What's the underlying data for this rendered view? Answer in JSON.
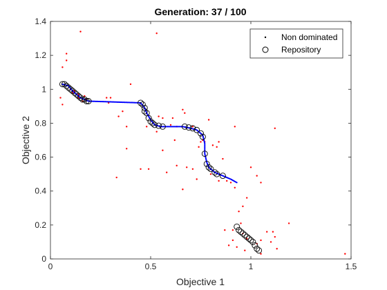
{
  "chart_data": {
    "type": "scatter",
    "title": "Generation: 37 / 100",
    "xlabel": "Objective 1",
    "ylabel": "Objective 2",
    "xlim": [
      0,
      1.5
    ],
    "ylim": [
      0,
      1.4
    ],
    "xticks": [
      "0",
      "0.5",
      "1",
      "1.5"
    ],
    "yticks": [
      "0",
      "0.2",
      "0.4",
      "0.6",
      "0.8",
      "1",
      "1.2",
      "1.4"
    ],
    "grid": false,
    "legend_position": "top-right",
    "legend": [
      {
        "label": "Non dominated",
        "marker": "dot",
        "color": "#000000"
      },
      {
        "label": "Repository",
        "marker": "circle",
        "color": "#000000"
      }
    ],
    "colors": {
      "population": "#ff0000",
      "front_line": "#0000ff",
      "repository": "#000000"
    },
    "population_points": [
      [
        0.15,
        1.34
      ],
      [
        0.53,
        1.33
      ],
      [
        0.06,
        1.13
      ],
      [
        0.08,
        1.17
      ],
      [
        0.08,
        1.21
      ],
      [
        0.4,
        1.03
      ],
      [
        0.05,
        0.95
      ],
      [
        0.06,
        0.91
      ],
      [
        0.28,
        0.95
      ],
      [
        0.3,
        0.95
      ],
      [
        0.29,
        0.92
      ],
      [
        0.34,
        0.84
      ],
      [
        0.36,
        0.87
      ],
      [
        0.38,
        0.65
      ],
      [
        0.38,
        0.78
      ],
      [
        0.33,
        0.48
      ],
      [
        0.45,
        0.53
      ],
      [
        0.49,
        0.53
      ],
      [
        0.48,
        0.78
      ],
      [
        0.53,
        0.75
      ],
      [
        0.56,
        0.64
      ],
      [
        0.58,
        0.51
      ],
      [
        0.62,
        0.7
      ],
      [
        0.63,
        0.55
      ],
      [
        0.61,
        0.83
      ],
      [
        0.54,
        0.84
      ],
      [
        0.56,
        0.83
      ],
      [
        0.66,
        0.88
      ],
      [
        0.67,
        0.86
      ],
      [
        0.66,
        0.41
      ],
      [
        0.68,
        0.54
      ],
      [
        0.71,
        0.53
      ],
      [
        0.73,
        0.47
      ],
      [
        0.74,
        0.66
      ],
      [
        0.75,
        0.69
      ],
      [
        0.77,
        0.69
      ],
      [
        0.79,
        0.82
      ],
      [
        0.83,
        0.66
      ],
      [
        0.84,
        0.46
      ],
      [
        0.86,
        0.59
      ],
      [
        0.84,
        0.69
      ],
      [
        0.81,
        0.67
      ],
      [
        0.8,
        0.5
      ],
      [
        0.92,
        0.78
      ],
      [
        0.94,
        0.28
      ],
      [
        0.96,
        0.31
      ],
      [
        1.0,
        0.54
      ],
      [
        1.05,
        0.45
      ],
      [
        1.12,
        0.77
      ],
      [
        1.03,
        0.49
      ],
      [
        0.87,
        0.17
      ],
      [
        0.91,
        0.11
      ],
      [
        0.93,
        0.07
      ],
      [
        0.96,
        0.15
      ],
      [
        0.98,
        0.12
      ],
      [
        0.97,
        0.05
      ],
      [
        0.89,
        0.08
      ],
      [
        0.91,
        0.17
      ],
      [
        1.03,
        0.09
      ],
      [
        1.05,
        0.03
      ],
      [
        1.05,
        0.11
      ],
      [
        1.08,
        0.16
      ],
      [
        1.1,
        0.1
      ],
      [
        1.12,
        0.13
      ],
      [
        1.13,
        0.06
      ],
      [
        1.19,
        0.21
      ],
      [
        1.11,
        0.16
      ],
      [
        1.47,
        0.03
      ],
      [
        0.98,
        0.36
      ],
      [
        0.95,
        0.21
      ],
      [
        0.17,
        0.96
      ],
      [
        0.18,
        0.94
      ],
      [
        0.14,
        0.97
      ],
      [
        0.12,
        0.99
      ],
      [
        0.16,
        0.93
      ],
      [
        0.1,
        1.0
      ],
      [
        0.11,
        0.98
      ],
      [
        0.14,
        0.95
      ],
      [
        0.6,
        0.79
      ],
      [
        0.63,
        0.78
      ],
      [
        0.71,
        0.78
      ],
      [
        0.88,
        0.46
      ],
      [
        0.9,
        0.45
      ],
      [
        0.92,
        0.42
      ],
      [
        0.76,
        0.7
      ]
    ],
    "front_line": [
      [
        0.06,
        1.03
      ],
      [
        0.09,
        1.02
      ],
      [
        0.11,
        0.99
      ],
      [
        0.13,
        0.97
      ],
      [
        0.15,
        0.95
      ],
      [
        0.17,
        0.94
      ],
      [
        0.19,
        0.93
      ],
      [
        0.45,
        0.92
      ],
      [
        0.47,
        0.89
      ],
      [
        0.48,
        0.86
      ],
      [
        0.5,
        0.82
      ],
      [
        0.52,
        0.79
      ],
      [
        0.55,
        0.78
      ],
      [
        0.58,
        0.78
      ],
      [
        0.62,
        0.78
      ],
      [
        0.66,
        0.78
      ],
      [
        0.7,
        0.77
      ],
      [
        0.73,
        0.76
      ],
      [
        0.76,
        0.73
      ],
      [
        0.77,
        0.68
      ],
      [
        0.77,
        0.62
      ],
      [
        0.78,
        0.57
      ],
      [
        0.79,
        0.54
      ],
      [
        0.82,
        0.51
      ],
      [
        0.86,
        0.49
      ],
      [
        0.9,
        0.47
      ],
      [
        0.93,
        0.45
      ]
    ],
    "repository": [
      [
        0.06,
        1.03
      ],
      [
        0.07,
        1.03
      ],
      [
        0.08,
        1.02
      ],
      [
        0.09,
        1.01
      ],
      [
        0.1,
        1.0
      ],
      [
        0.11,
        0.99
      ],
      [
        0.12,
        0.98
      ],
      [
        0.13,
        0.97
      ],
      [
        0.14,
        0.96
      ],
      [
        0.15,
        0.95
      ],
      [
        0.16,
        0.94
      ],
      [
        0.17,
        0.94
      ],
      [
        0.18,
        0.93
      ],
      [
        0.19,
        0.93
      ],
      [
        0.45,
        0.92
      ],
      [
        0.46,
        0.91
      ],
      [
        0.47,
        0.89
      ],
      [
        0.47,
        0.87
      ],
      [
        0.48,
        0.86
      ],
      [
        0.49,
        0.83
      ],
      [
        0.5,
        0.81
      ],
      [
        0.51,
        0.8
      ],
      [
        0.52,
        0.79
      ],
      [
        0.54,
        0.785
      ],
      [
        0.56,
        0.78
      ],
      [
        0.67,
        0.78
      ],
      [
        0.69,
        0.775
      ],
      [
        0.71,
        0.77
      ],
      [
        0.73,
        0.76
      ],
      [
        0.75,
        0.74
      ],
      [
        0.76,
        0.72
      ],
      [
        0.77,
        0.62
      ],
      [
        0.78,
        0.56
      ],
      [
        0.79,
        0.54
      ],
      [
        0.8,
        0.53
      ],
      [
        0.82,
        0.51
      ],
      [
        0.83,
        0.5
      ],
      [
        0.86,
        0.49
      ],
      [
        0.93,
        0.19
      ],
      [
        0.94,
        0.17
      ],
      [
        0.95,
        0.16
      ],
      [
        0.96,
        0.15
      ],
      [
        0.97,
        0.14
      ],
      [
        0.98,
        0.13
      ],
      [
        0.99,
        0.12
      ],
      [
        1.0,
        0.11
      ],
      [
        1.01,
        0.1
      ],
      [
        1.02,
        0.08
      ],
      [
        1.03,
        0.06
      ],
      [
        1.04,
        0.05
      ]
    ]
  }
}
